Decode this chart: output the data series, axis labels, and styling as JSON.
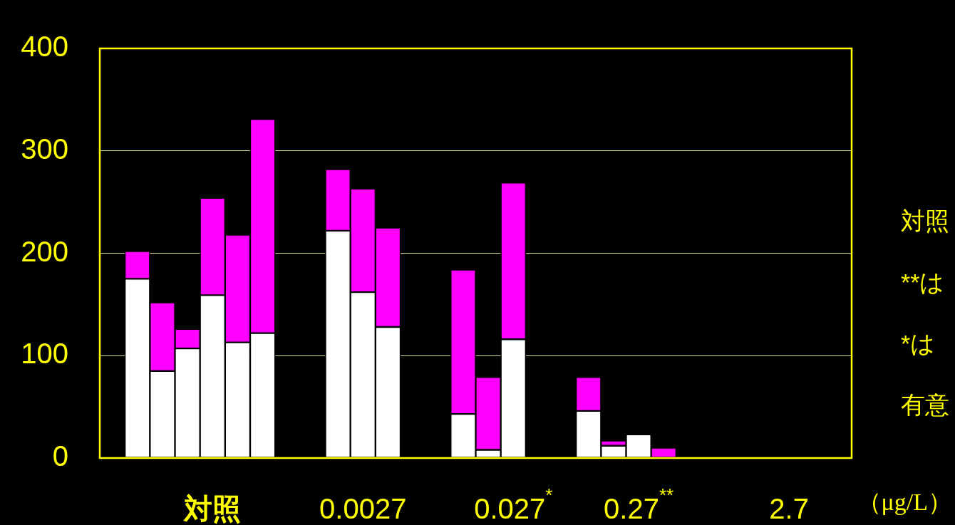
{
  "chart_data": {
    "type": "bar",
    "stacked": true,
    "categories": [
      null,
      null,
      null,
      null,
      "対照",
      null,
      null,
      null,
      null,
      null,
      "0.0027",
      null,
      null,
      null,
      null,
      null,
      "0.027$^{*}$",
      null,
      null,
      null,
      null,
      "0.27$^{**}$",
      null,
      null,
      null,
      null,
      null,
      "2.7",
      null,
      null
    ],
    "series": [
      {
        "color": "#ffffff",
        "values": [
          null,
          175,
          85,
          107,
          159,
          113,
          122,
          null,
          null,
          222,
          162,
          128,
          null,
          null,
          43,
          8,
          116,
          null,
          null,
          46,
          12,
          23,
          null,
          null,
          null,
          null,
          null,
          null,
          null,
          null
        ]
      },
      {
        "color": "#ff00ff",
        "values": [
          null,
          27,
          67,
          19,
          95,
          105,
          209,
          null,
          null,
          60,
          101,
          97,
          null,
          null,
          141,
          71,
          153,
          null,
          null,
          33,
          5,
          null,
          10,
          null,
          null,
          null,
          null,
          null,
          null,
          null
        ]
      }
    ],
    "xlabel": "（μg/L）",
    "ylim": [
      0,
      400
    ],
    "yticks": [
      0,
      100,
      200,
      300,
      400
    ],
    "grid": "y",
    "legend": false,
    "annotations": [
      "対照",
      "**は",
      "*は",
      "有意"
    ]
  }
}
